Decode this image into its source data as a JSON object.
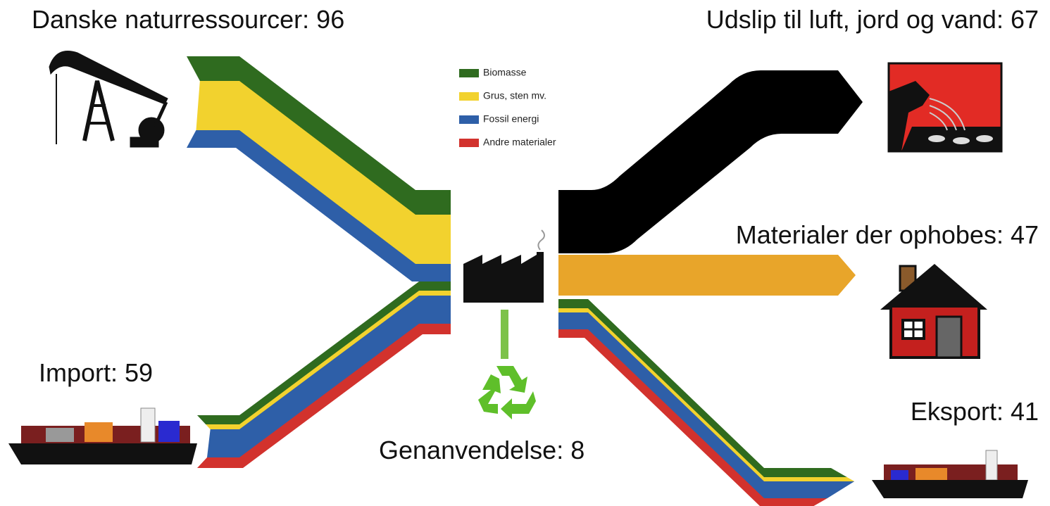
{
  "labels": {
    "danish_resources": "Danske naturressourcer: 96",
    "import": "Import: 59",
    "emissions": "Udslip til luft, jord og vand: 67",
    "accumulated": "Materialer der ophobes: 47",
    "export": "Eksport: 41",
    "recycling": "Genanvendelse: 8"
  },
  "legend": [
    {
      "name": "Biomasse",
      "color": "#2f6b1f"
    },
    {
      "name": "Grus, sten mv.",
      "color": "#f2d22e"
    },
    {
      "name": "Fossil energi",
      "color": "#2e5fa8"
    },
    {
      "name": "Andre materialer",
      "color": "#d2322d"
    }
  ]
}
